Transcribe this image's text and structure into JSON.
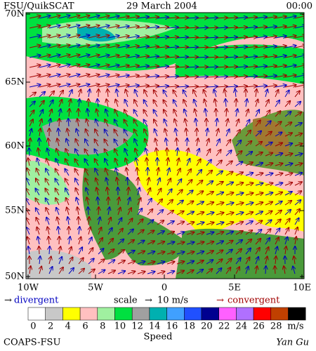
{
  "header": {
    "title": "FSU/QuikSCAT",
    "date": "29 March 2004",
    "time": "00:00"
  },
  "map": {
    "lat_labels": [
      "70N",
      "65N",
      "60N",
      "55N",
      "50N"
    ],
    "lon_labels": [
      "10W",
      "5W",
      "0",
      "5E",
      "10E"
    ]
  },
  "legend": {
    "divergent": "divergent",
    "scale": "scale",
    "scale_value": "10 m/s",
    "convergent": "convergent"
  },
  "colorbar": {
    "colors": [
      "#ffffff",
      "#c8c8c8",
      "#ffff00",
      "#ffc0c0",
      "#a0f0a0",
      "#00e040",
      "#a0a0a0",
      "#00b0b0",
      "#40a0ff",
      "#2050ff",
      "#000090",
      "#ff60ff",
      "#b070ff",
      "#ff0000",
      "#c04000",
      "#000000"
    ],
    "labels": [
      "0",
      "2",
      "4",
      "6",
      "8",
      "10",
      "12",
      "14",
      "16",
      "18",
      "20",
      "22",
      "24",
      "26",
      "28"
    ],
    "unit": "m/s",
    "title": "Speed"
  },
  "footer": {
    "left": "COAPS-FSU",
    "right": "Yan Gu"
  }
}
